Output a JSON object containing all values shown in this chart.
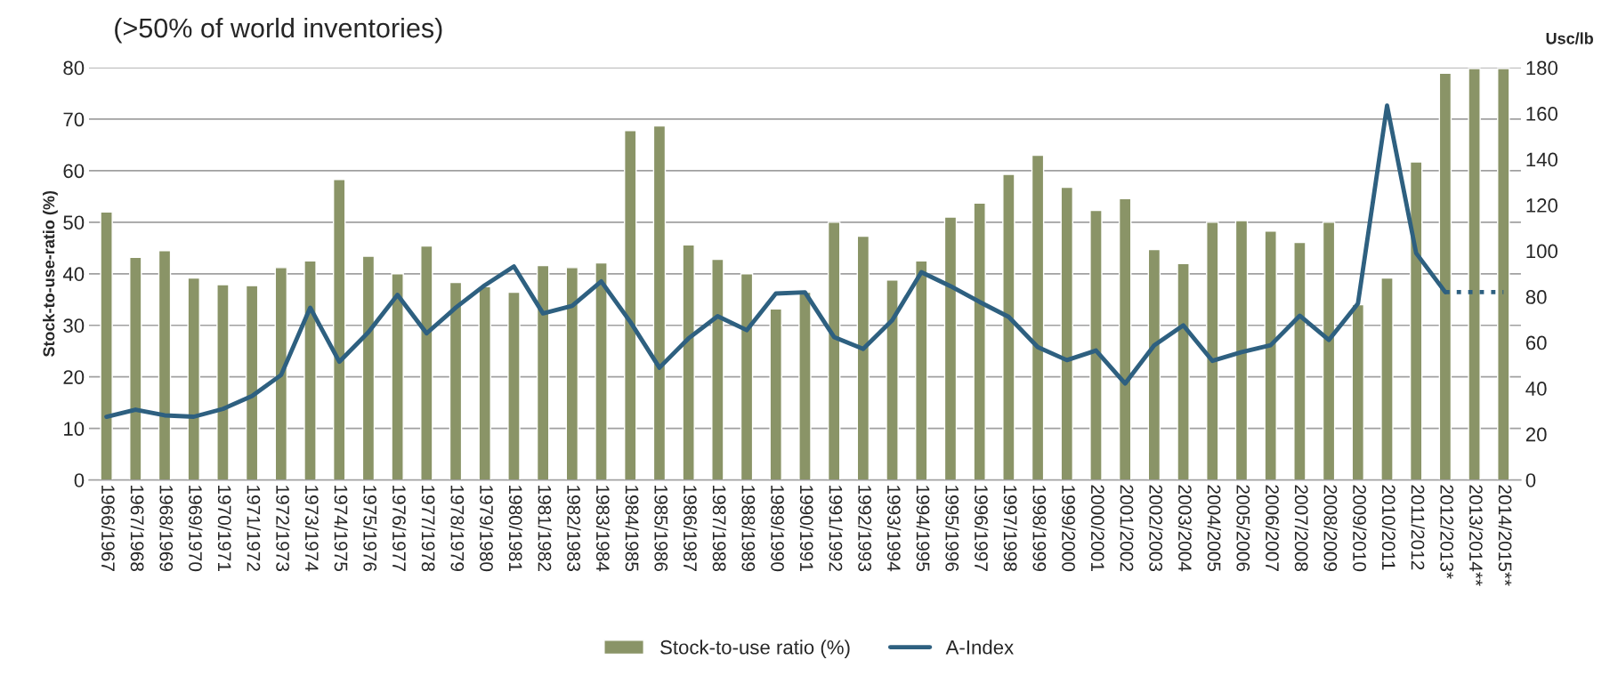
{
  "chart_data": {
    "type": "bar",
    "title": "(>50% of world inventories)",
    "ylabel": "Stock-to-use-ratio (%)",
    "y2label": "Usc/lb",
    "categories": [
      "1966/1967",
      "1967/1968",
      "1968/1969",
      "1969/1970",
      "1970/1971",
      "1971/1972",
      "1972/1973",
      "1973/1974",
      "1974/1975",
      "1975/1976",
      "1976/1977",
      "1977/1978",
      "1978/1979",
      "1979/1980",
      "1980/1981",
      "1981/1982",
      "1982/1983",
      "1983/1984",
      "1984/1985",
      "1985/1986",
      "1986/1987",
      "1987/1988",
      "1988/1989",
      "1989/1990",
      "1990/1991",
      "1991/1992",
      "1992/1993",
      "1993/1994",
      "1994/1995",
      "1995/1996",
      "1996/1997",
      "1997/1998",
      "1998/1999",
      "1999/2000",
      "2000/2001",
      "2001/2002",
      "2002/2003",
      "2003/2004",
      "2004/2005",
      "2005/2006",
      "2006/2007",
      "2007/2008",
      "2008/2009",
      "2009/2010",
      "2010/2011",
      "2011/2012",
      "2012/2013*",
      "2013/2014**",
      "2014/2015**"
    ],
    "series": [
      {
        "name": "Stock-to-use ratio (%)",
        "color": "#8a9467",
        "values": [
          52,
          43.2,
          44.5,
          39.2,
          37.9,
          37.7,
          41.2,
          42.5,
          58.3,
          43.4,
          40,
          45.4,
          38.3,
          37.5,
          36.4,
          41.6,
          41.2,
          42.1,
          67.8,
          68.7,
          45.6,
          42.8,
          40,
          33.2,
          36.4,
          50,
          47.3,
          38.8,
          42.5,
          51,
          53.7,
          59.3,
          63,
          56.8,
          52.3,
          54.6,
          44.7,
          42,
          50,
          50.3,
          48.3,
          46.1,
          50,
          34,
          39.2,
          61.7,
          78.9,
          79.8,
          79.8
        ]
      },
      {
        "name": "A-Index",
        "type": "line",
        "axis": "y2",
        "color": "#2e6080",
        "line_style": "solid",
        "values": [
          27.6,
          30.7,
          28.2,
          27.6,
          31,
          36.6,
          45.8,
          75.2,
          51.6,
          64.5,
          80.8,
          64,
          75.2,
          85,
          93.2,
          72.7,
          76,
          86.7,
          69,
          49,
          61.8,
          71.5,
          65.4,
          81.4,
          81.9,
          62.4,
          57.2,
          69.7,
          90.7,
          84.6,
          77.7,
          71.2,
          58,
          52.3,
          56.5,
          42.1,
          58.8,
          67.5,
          52,
          55.8,
          58.8,
          71.7,
          61.1,
          77,
          163.4,
          99,
          82,
          null,
          null
        ]
      },
      {
        "type": "line",
        "axis": "y2",
        "color": "#2e6080",
        "line_style": "dotted",
        "values": [
          null,
          null,
          null,
          null,
          null,
          null,
          null,
          null,
          null,
          null,
          null,
          null,
          null,
          null,
          null,
          null,
          null,
          null,
          null,
          null,
          null,
          null,
          null,
          null,
          null,
          null,
          null,
          null,
          null,
          null,
          null,
          null,
          null,
          null,
          null,
          null,
          null,
          null,
          null,
          null,
          null,
          null,
          null,
          null,
          null,
          null,
          82,
          82,
          82
        ]
      }
    ],
    "ylim": [
      0,
      80
    ],
    "yticks": [
      0,
      10,
      20,
      30,
      40,
      50,
      60,
      70,
      80
    ],
    "y2lim": [
      0,
      180
    ],
    "y2ticks": [
      0,
      20,
      40,
      60,
      80,
      100,
      120,
      140,
      160,
      180
    ],
    "grid": "y",
    "legend": "bottom"
  }
}
